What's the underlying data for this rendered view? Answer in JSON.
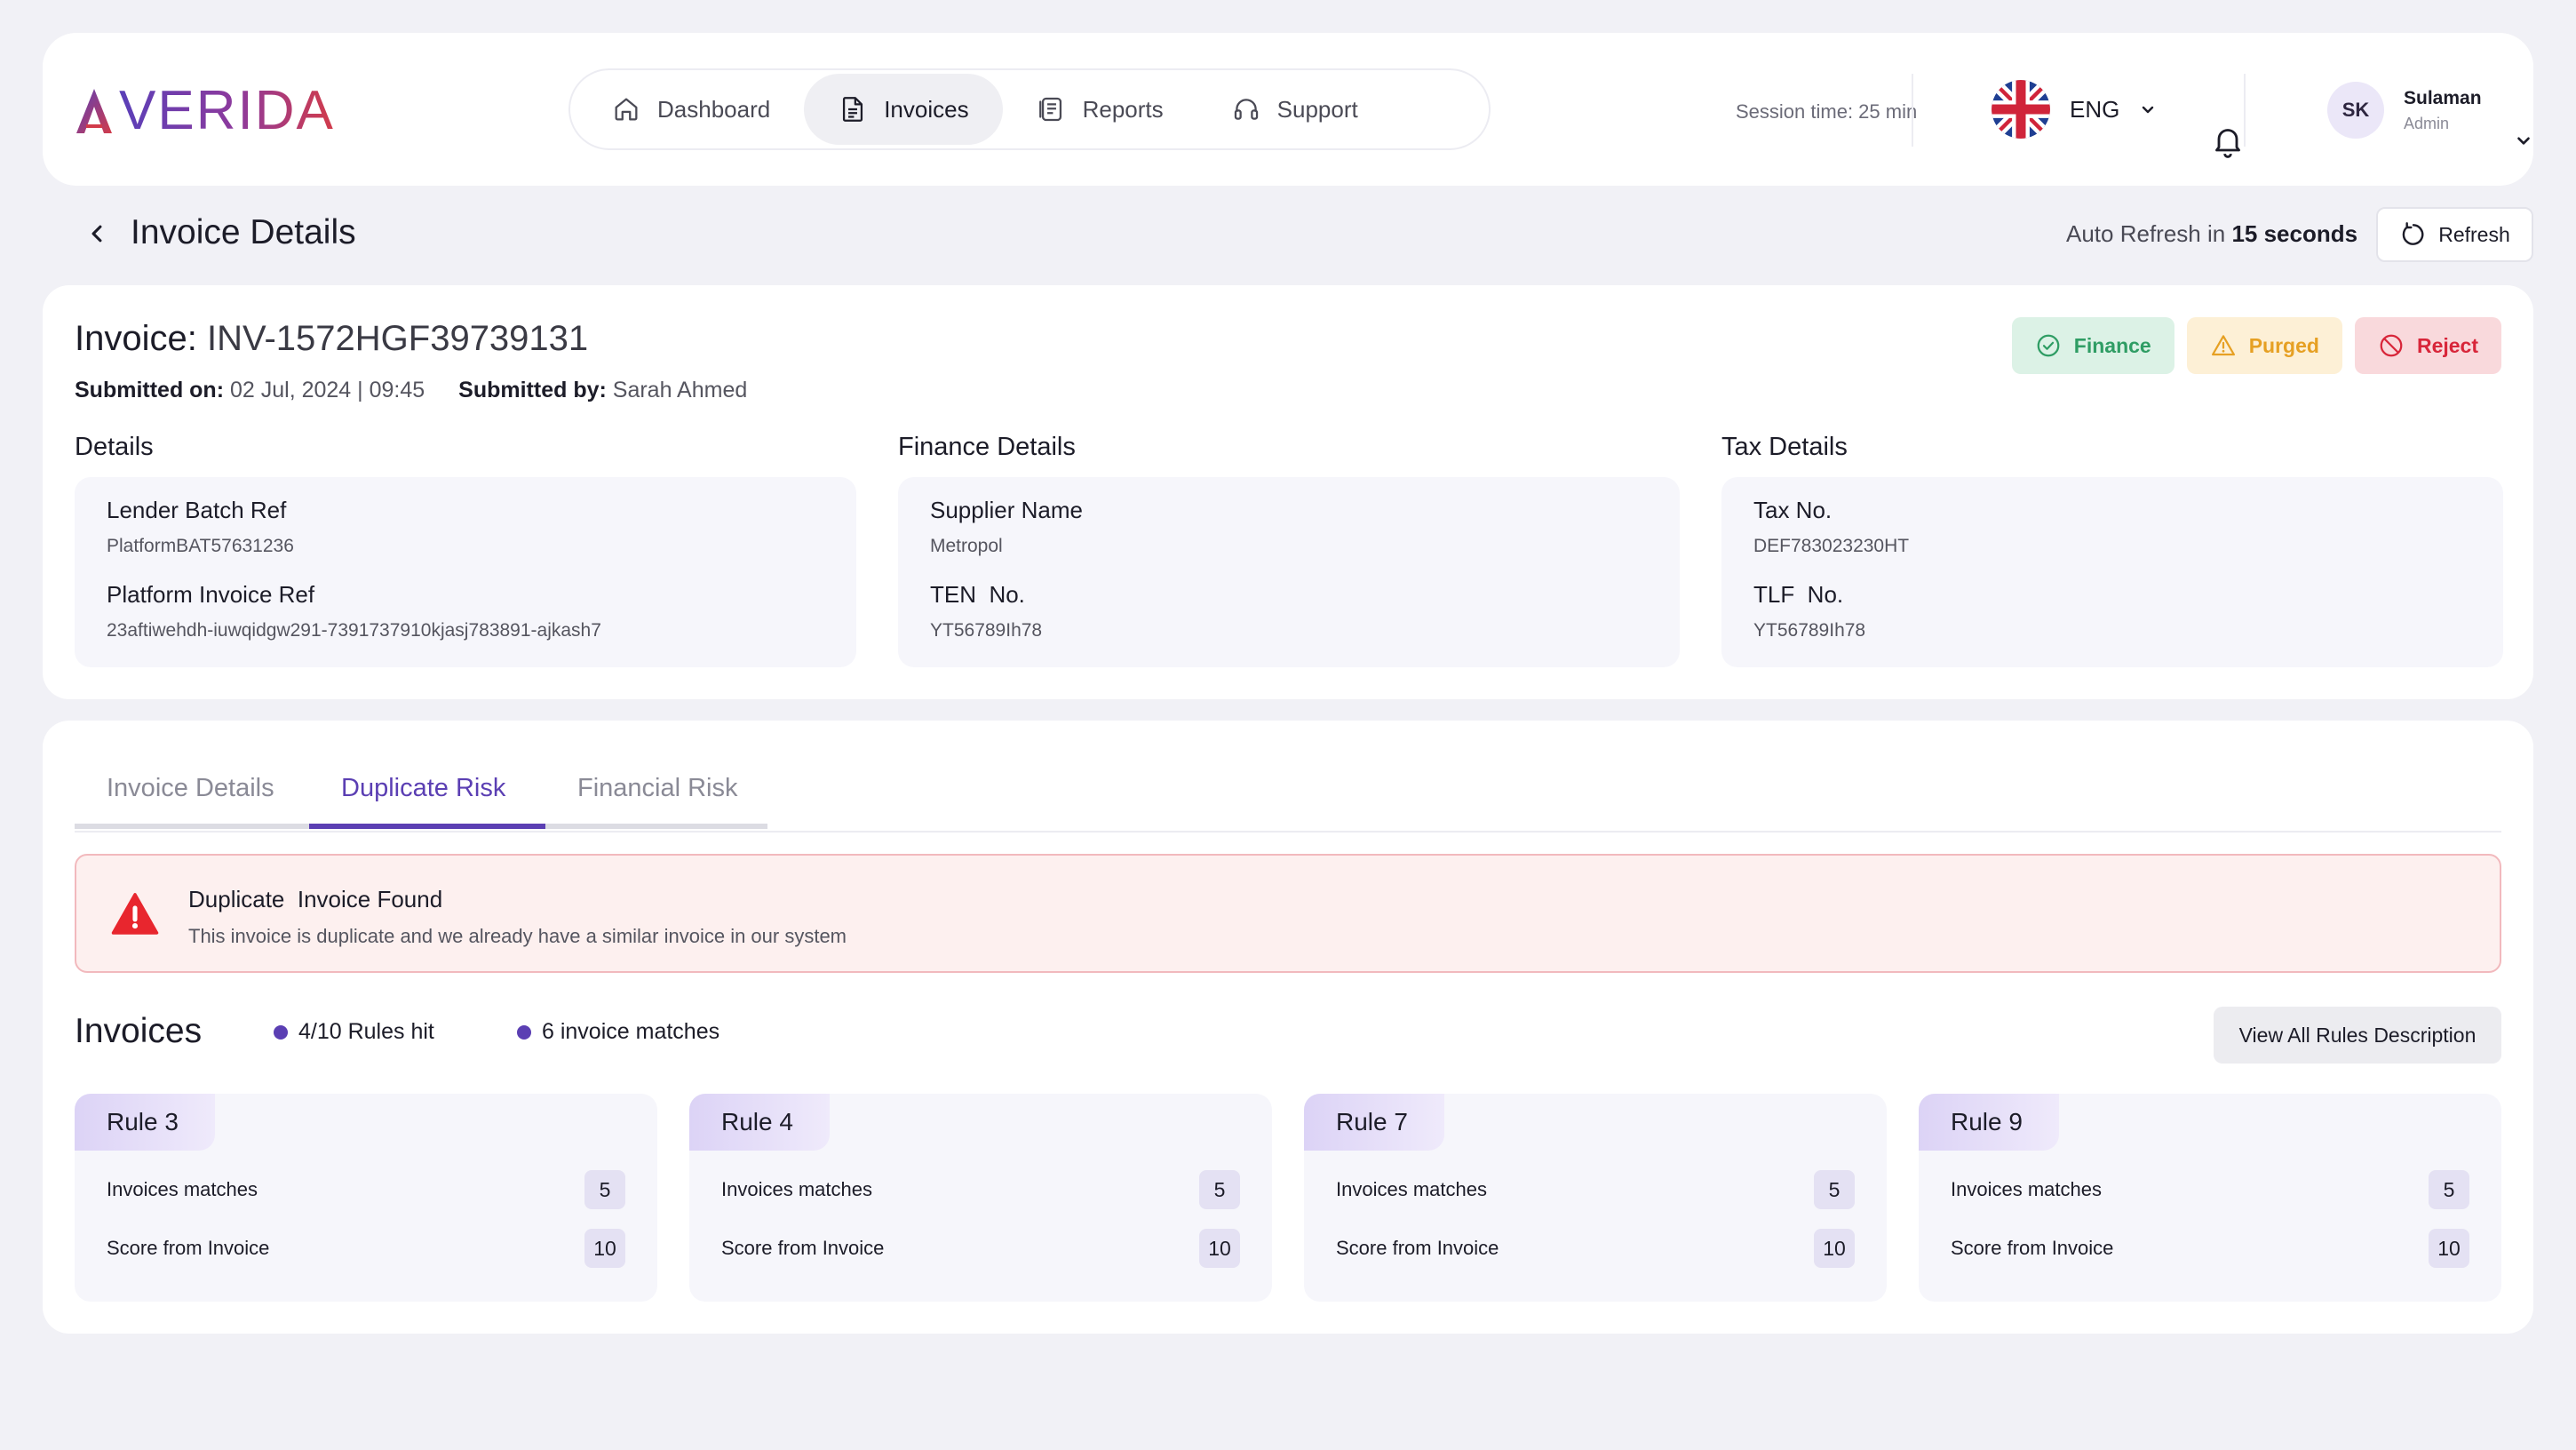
{
  "header": {
    "logo_text": "VERIDA",
    "nav": [
      {
        "label": "Dashboard",
        "icon": "home-icon"
      },
      {
        "label": "Invoices",
        "icon": "document-icon",
        "active": true
      },
      {
        "label": "Reports",
        "icon": "report-icon"
      },
      {
        "label": "Support",
        "icon": "headset-icon"
      }
    ],
    "session_time": "Session time: 25 min",
    "language": "ENG",
    "user": {
      "initials": "SK",
      "name": "Sulaman",
      "role": "Admin"
    }
  },
  "page": {
    "title": "Invoice Details",
    "auto_refresh_prefix": "Auto Refresh in",
    "auto_refresh_value": "15 seconds",
    "refresh_label": "Refresh"
  },
  "invoice": {
    "title_label": "Invoice:",
    "number": "INV-1572HGF39739131",
    "submitted_on_label": "Submitted on:",
    "submitted_on": "02 Jul, 2024 | 09:45",
    "submitted_by_label": "Submitted by:",
    "submitted_by": "Sarah Ahmed",
    "actions": {
      "finance": "Finance",
      "purged": "Purged",
      "reject": "Reject"
    }
  },
  "sections": {
    "details": {
      "title": "Details",
      "k1": "Lender Batch Ref",
      "v1": "PlatformBAT57631236",
      "k2": "Platform Invoice Ref",
      "v2": "23aftiwehdh-iuwqidgw291-7391737910kjasj783891-ajkash7"
    },
    "finance": {
      "title": "Finance Details",
      "k1": "Supplier Name",
      "v1": "Metropol",
      "k2": "TEN  No.",
      "v2": "YT56789Ih78"
    },
    "tax": {
      "title": "Tax Details",
      "k1": "Tax No.",
      "v1": "DEF783023230HT",
      "k2": "TLF  No.",
      "v2": "YT56789Ih78"
    }
  },
  "tabs": [
    "Invoice Details",
    "Duplicate Risk",
    "Financial Risk"
  ],
  "alert": {
    "title": "Duplicate  Invoice Found",
    "text": "This invoice is duplicate and we already have a similar invoice in our system"
  },
  "invoices": {
    "title": "Invoices",
    "rules_hit": "4/10 Rules hit",
    "matches": "6 invoice matches",
    "view_all": "View All Rules Description",
    "matches_label": "Invoices matches",
    "score_label": "Score from Invoice",
    "rules": [
      {
        "name": "Rule 3",
        "matches": "5",
        "score": "10"
      },
      {
        "name": "Rule 4",
        "matches": "5",
        "score": "10"
      },
      {
        "name": "Rule 7",
        "matches": "5",
        "score": "10"
      },
      {
        "name": "Rule 9",
        "matches": "5",
        "score": "10"
      }
    ]
  },
  "colors": {
    "accent": "#5b3fb3",
    "finance": "#2f9d64",
    "purged": "#e6a023",
    "reject": "#d8263a"
  }
}
